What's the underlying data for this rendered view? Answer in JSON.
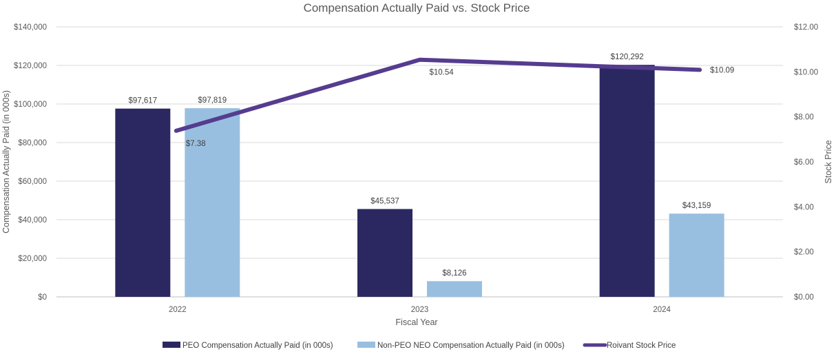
{
  "chart_data": {
    "type": "bar",
    "title": "Compensation Actually Paid vs. Stock Price",
    "xlabel": "Fiscal Year",
    "ylabel": "Compensation Actually Paid (in 000s)",
    "y2label": "Stock Price",
    "categories": [
      "2022",
      "2023",
      "2024"
    ],
    "ylim": [
      0,
      140000
    ],
    "y2lim": [
      0,
      12
    ],
    "yticks": [
      "$0",
      "$20,000",
      "$40,000",
      "$60,000",
      "$80,000",
      "$100,000",
      "$120,000",
      "$140,000"
    ],
    "y2ticks": [
      "$0.00",
      "$2.00",
      "$4.00",
      "$6.00",
      "$8.00",
      "$10.00",
      "$12.00"
    ],
    "grid": true,
    "legend_position": "bottom",
    "series": [
      {
        "name": "PEO Compensation Actually Paid (in 000s)",
        "kind": "bar",
        "axis": "left",
        "color": "#2b2861",
        "values": [
          97617,
          45537,
          120292
        ],
        "labels": [
          "$97,617",
          "$45,537",
          "$120,292"
        ]
      },
      {
        "name": "Non-PEO NEO Compensation Actually Paid (in 000s)",
        "kind": "bar",
        "axis": "left",
        "color": "#99bfe0",
        "values": [
          97819,
          8126,
          43159
        ],
        "labels": [
          "$97,819",
          "$8,126",
          "$43,159"
        ]
      },
      {
        "name": "Roivant Stock Price",
        "kind": "line",
        "axis": "right",
        "color": "#553c8f",
        "values": [
          7.38,
          10.54,
          10.09
        ],
        "labels": [
          "$7.38",
          "$10.54",
          "$10.09"
        ]
      }
    ]
  }
}
